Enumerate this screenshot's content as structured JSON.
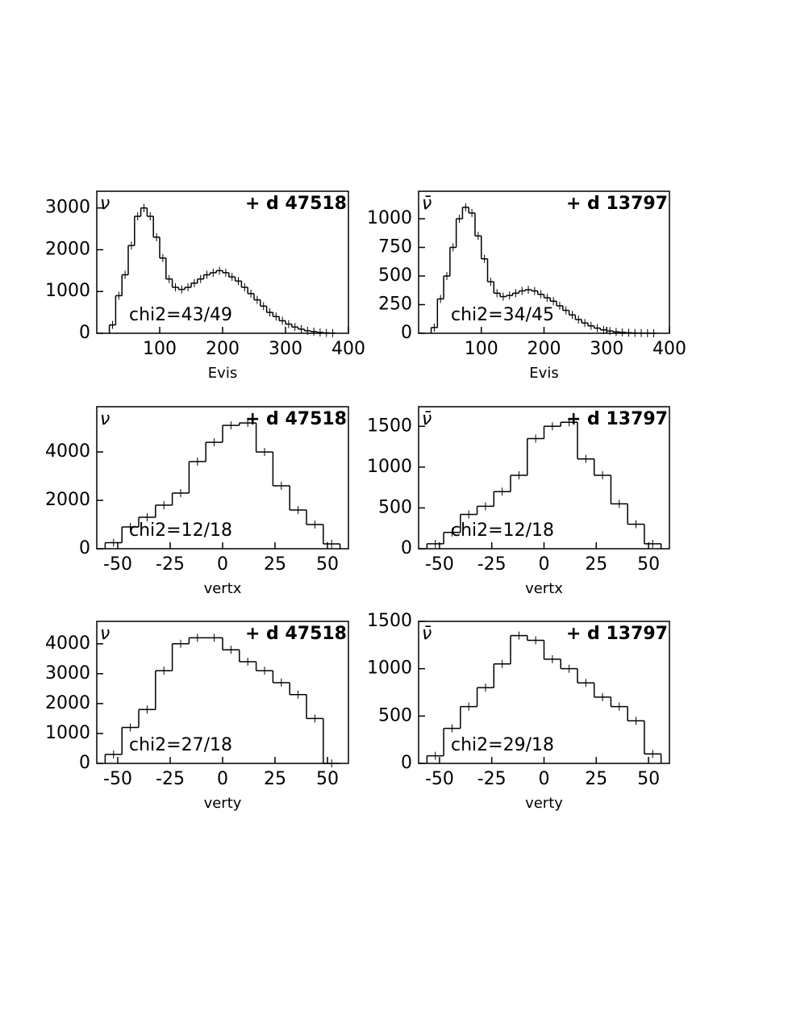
{
  "chart_data": [
    {
      "type": "histogram",
      "label": "ν",
      "legend": "+ d 47518",
      "annotation": "chi2=43/49",
      "x_label": "Evis",
      "bins": [
        20,
        30,
        40,
        50,
        60,
        70,
        80,
        90,
        100,
        110,
        120,
        130,
        140,
        150,
        160,
        170,
        180,
        190,
        200,
        210,
        220,
        230,
        240,
        250,
        260,
        270,
        280,
        290,
        300,
        310,
        320,
        330,
        340,
        350,
        360,
        370,
        380
      ],
      "values": [
        200,
        900,
        1400,
        2100,
        2800,
        3000,
        2800,
        2300,
        1800,
        1300,
        1100,
        1050,
        1100,
        1200,
        1300,
        1400,
        1450,
        1500,
        1450,
        1350,
        1250,
        1100,
        950,
        800,
        650,
        500,
        400,
        300,
        220,
        150,
        100,
        60,
        40,
        20,
        10,
        5
      ],
      "xlim": [
        0,
        400
      ],
      "xticks": [
        100,
        200,
        300,
        400
      ],
      "ylim": [
        0,
        3400
      ],
      "yticks": [
        0,
        1000,
        2000,
        3000
      ],
      "color": "#000000"
    },
    {
      "type": "histogram",
      "label": "ν̄",
      "legend": "+ d 13797",
      "annotation": "chi2=34/45",
      "x_label": "Evis",
      "bins": [
        20,
        30,
        40,
        50,
        60,
        70,
        80,
        90,
        100,
        110,
        120,
        130,
        140,
        150,
        160,
        170,
        180,
        190,
        200,
        210,
        220,
        230,
        240,
        250,
        260,
        270,
        280,
        290,
        300,
        310,
        320,
        330,
        340,
        350,
        360,
        370,
        380
      ],
      "values": [
        50,
        300,
        500,
        750,
        1000,
        1100,
        1050,
        850,
        650,
        450,
        350,
        320,
        330,
        350,
        370,
        380,
        370,
        340,
        310,
        280,
        240,
        200,
        160,
        120,
        90,
        65,
        45,
        30,
        20,
        12,
        8,
        5,
        3,
        2,
        1,
        0
      ],
      "xlim": [
        0,
        400
      ],
      "xticks": [
        100,
        200,
        300,
        400
      ],
      "ylim": [
        0,
        1240
      ],
      "yticks": [
        0,
        250,
        500,
        750,
        1000
      ],
      "color": "#000000"
    },
    {
      "type": "histogram",
      "label": "ν",
      "legend": "+ d 47518",
      "annotation": "chi2=12/18",
      "x_label": "vertx",
      "bins": [
        -56,
        -48,
        -40,
        -32,
        -24,
        -16,
        -8,
        0,
        8,
        16,
        24,
        32,
        40,
        48,
        56
      ],
      "values": [
        250,
        900,
        1300,
        1800,
        2300,
        3600,
        4400,
        5100,
        5200,
        4000,
        2600,
        1600,
        1000,
        200
      ],
      "xlim": [
        -60,
        60
      ],
      "xticks": [
        -50,
        -25,
        0,
        25,
        50
      ],
      "ylim": [
        0,
        5870
      ],
      "yticks": [
        0,
        2000,
        4000
      ],
      "color": "#000000"
    },
    {
      "type": "histogram",
      "label": "ν̄",
      "legend": "+ d 13797",
      "annotation": "chi2=12/18",
      "x_label": "vertx",
      "bins": [
        -56,
        -48,
        -40,
        -32,
        -24,
        -16,
        -8,
        0,
        8,
        16,
        24,
        32,
        40,
        48,
        56
      ],
      "values": [
        60,
        200,
        420,
        520,
        700,
        900,
        1350,
        1500,
        1550,
        1100,
        900,
        550,
        300,
        60
      ],
      "xlim": [
        -60,
        60
      ],
      "xticks": [
        -50,
        -25,
        0,
        25,
        50
      ],
      "ylim": [
        0,
        1740
      ],
      "yticks": [
        0,
        500,
        1000,
        1500
      ],
      "color": "#000000"
    },
    {
      "type": "histogram",
      "label": "ν",
      "legend": "+ d 47518",
      "annotation": "chi2=27/18",
      "x_label": "verty",
      "bins": [
        -56,
        -48,
        -40,
        -32,
        -24,
        -16,
        -8,
        0,
        8,
        16,
        24,
        32,
        40,
        48,
        56
      ],
      "values": [
        300,
        1200,
        1800,
        3100,
        4000,
        4200,
        4200,
        3800,
        3400,
        3100,
        2700,
        2300,
        1500,
        0
      ],
      "xlim": [
        -60,
        60
      ],
      "xticks": [
        -50,
        -25,
        0,
        25,
        50
      ],
      "ylim": [
        0,
        4750
      ],
      "yticks": [
        0,
        1000,
        2000,
        3000,
        4000
      ],
      "color": "#000000"
    },
    {
      "type": "histogram",
      "label": "ν̄",
      "legend": "+ d 13797",
      "annotation": "chi2=29/18",
      "x_label": "verty",
      "bins": [
        -56,
        -48,
        -40,
        -32,
        -24,
        -16,
        -8,
        0,
        8,
        16,
        24,
        32,
        40,
        48,
        56
      ],
      "values": [
        80,
        370,
        600,
        800,
        1050,
        1350,
        1300,
        1100,
        1000,
        850,
        700,
        600,
        450,
        100
      ],
      "xlim": [
        -60,
        60
      ],
      "xticks": [
        -50,
        -25,
        0,
        25,
        50
      ],
      "ylim": [
        0,
        1500
      ],
      "yticks": [
        0,
        500,
        1000,
        1500
      ],
      "color": "#000000"
    }
  ]
}
